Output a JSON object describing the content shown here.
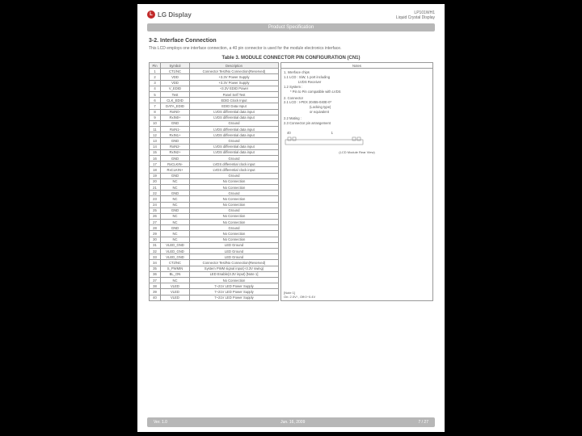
{
  "header": {
    "logo_letter": "L",
    "logo_text": "LG Display",
    "doc_line1": "LP101WH1",
    "doc_line2": "Liquid Crystal Display",
    "product_spec": "Product Specification"
  },
  "section": {
    "title": "3-2. Interface Connection",
    "desc": "This LCD employs one interface connection, a 40 pin connector is used for the module electronics interface."
  },
  "table": {
    "title": "Table 3. MODULE CONNECTOR PIN CONFIGURATION (CN1)",
    "headers": {
      "pin": "Pin",
      "symbol": "Symbol",
      "description": "Description",
      "notes": "Notes"
    },
    "rows": [
      {
        "pin": "1",
        "sym": "CT1/NC",
        "desc": "Connector Test/No Connection(Reserved)"
      },
      {
        "pin": "2",
        "sym": "VDD",
        "desc": "+3.3V Power Supply"
      },
      {
        "pin": "3",
        "sym": "VDD",
        "desc": "+3.3V Power Supply"
      },
      {
        "pin": "4",
        "sym": "V_EDID",
        "desc": "+3.3V EDID Power"
      },
      {
        "pin": "5",
        "sym": "Test",
        "desc": "Panel Self Test"
      },
      {
        "pin": "6",
        "sym": "CLK_EDID",
        "desc": "EDID Clock Input"
      },
      {
        "pin": "7",
        "sym": "DATA_EDID",
        "desc": "EDID Data Input"
      },
      {
        "pin": "8",
        "sym": "RxIN0-",
        "desc": "LVDS differential data input"
      },
      {
        "pin": "9",
        "sym": "RxIN0+",
        "desc": "LVDS differential data input"
      },
      {
        "pin": "10",
        "sym": "GND",
        "desc": "Ground"
      },
      {
        "pin": "11",
        "sym": "RxIN1-",
        "desc": "LVDS differential data input"
      },
      {
        "pin": "12",
        "sym": "RxIN1+",
        "desc": "LVDS differential data input"
      },
      {
        "pin": "13",
        "sym": "GND",
        "desc": "Ground"
      },
      {
        "pin": "14",
        "sym": "RxIN2-",
        "desc": "LVDS differential data input"
      },
      {
        "pin": "15",
        "sym": "RxIN2+",
        "desc": "LVDS differential data input"
      },
      {
        "pin": "16",
        "sym": "GND",
        "desc": "Ground"
      },
      {
        "pin": "17",
        "sym": "RxCLKIN-",
        "desc": "LVDS differential clock input"
      },
      {
        "pin": "18",
        "sym": "RxCLKIN+",
        "desc": "LVDS differential clock input"
      },
      {
        "pin": "19",
        "sym": "GND",
        "desc": "Ground"
      },
      {
        "pin": "20",
        "sym": "NC",
        "desc": "No Connection"
      },
      {
        "pin": "21",
        "sym": "NC",
        "desc": "No Connection"
      },
      {
        "pin": "22",
        "sym": "GND",
        "desc": "Ground"
      },
      {
        "pin": "23",
        "sym": "NC",
        "desc": "No Connection"
      },
      {
        "pin": "24",
        "sym": "NC",
        "desc": "No Connection"
      },
      {
        "pin": "25",
        "sym": "GND",
        "desc": "Ground"
      },
      {
        "pin": "26",
        "sym": "NC",
        "desc": "No Connection"
      },
      {
        "pin": "27",
        "sym": "NC",
        "desc": "No Connection"
      },
      {
        "pin": "28",
        "sym": "GND",
        "desc": "Ground"
      },
      {
        "pin": "29",
        "sym": "NC",
        "desc": "No Connection"
      },
      {
        "pin": "30",
        "sym": "NC",
        "desc": "No Connection"
      },
      {
        "pin": "31",
        "sym": "VLED_GND",
        "desc": "LED Ground"
      },
      {
        "pin": "32",
        "sym": "VLED_GND",
        "desc": "LED Ground"
      },
      {
        "pin": "33",
        "sym": "VLED_GND",
        "desc": "LED Ground"
      },
      {
        "pin": "34",
        "sym": "CT2/NC",
        "desc": "Connector Test/No Connection(Reserved)"
      },
      {
        "pin": "35",
        "sym": "S_PWMIN",
        "desc": "System PWM signal input(+3.3V swing)"
      },
      {
        "pin": "36",
        "sym": "BL_ON",
        "desc": "LED Enable(3.3V input) [Note 1]"
      },
      {
        "pin": "37",
        "sym": "NC",
        "desc": "No Connection"
      },
      {
        "pin": "38",
        "sym": "VLED",
        "desc": "7~21V LED Power Supply"
      },
      {
        "pin": "39",
        "sym": "VLED",
        "desc": "7~21V LED Power Supply"
      },
      {
        "pin": "40",
        "sym": "VLED",
        "desc": "7~21V LED Power Supply"
      }
    ]
  },
  "notes": {
    "l1": "1, Interface chips",
    "l2": "1.1 LCD : SiW, 1 port including",
    "l2a": "LVDS Receiver",
    "l3": "1.2 System :",
    "l3a": "* Pin to Pin compatible with LVDS",
    "l4": "2. Connector",
    "l5": "2.1 LCD    : I-PEX 20455-040E-0*",
    "l5a": "(Locking type)",
    "l5b": "or equivalent",
    "l6": "2.2 Mating :",
    "l7": "2.3 Connector pin arrangement",
    "pin40": "40",
    "pin1": "1",
    "caption": "(LCD Module Rear View)",
    "note1_title": "[Note 1]",
    "note1_body": "On: 2.0V↑, Off:0~0.4V"
  },
  "footer": {
    "ver": "Ver. 1.0",
    "date": "Jun. 16, 2009",
    "pages": "7 / 27"
  },
  "colors": {
    "bar_bg": "#b7b7b7",
    "logo_red": "#c12a2a",
    "border": "#999999"
  }
}
